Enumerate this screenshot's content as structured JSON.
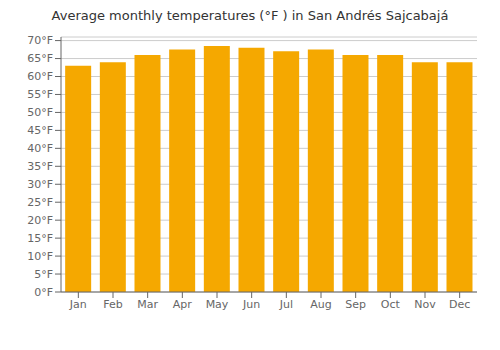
{
  "chart_data": {
    "type": "bar",
    "title": "Average monthly temperatures (°F ) in San Andrés Sajcabajá",
    "categories": [
      "Jan",
      "Feb",
      "Mar",
      "Apr",
      "May",
      "Jun",
      "Jul",
      "Aug",
      "Sep",
      "Oct",
      "Nov",
      "Dec"
    ],
    "values": [
      63.0,
      64.0,
      66.0,
      67.5,
      68.5,
      68.0,
      67.0,
      67.5,
      66.0,
      66.0,
      64.0,
      64.0
    ],
    "color": "#F5A800",
    "ylim": [
      0,
      71
    ],
    "yticks": [
      {
        "value": 0,
        "label": "0°F"
      },
      {
        "value": 5,
        "label": "5°F"
      },
      {
        "value": 10,
        "label": "10°F"
      },
      {
        "value": 15,
        "label": "15°F"
      },
      {
        "value": 20,
        "label": "20°F"
      },
      {
        "value": 25,
        "label": "25°F"
      },
      {
        "value": 30,
        "label": "30°F"
      },
      {
        "value": 35,
        "label": "35°F"
      },
      {
        "value": 40,
        "label": "40°F"
      },
      {
        "value": 45,
        "label": "45°F"
      },
      {
        "value": 50,
        "label": "50°F"
      },
      {
        "value": 55,
        "label": "55°F"
      },
      {
        "value": 60,
        "label": "60°F"
      },
      {
        "value": 65,
        "label": "65°F"
      },
      {
        "value": 70,
        "label": "70°F"
      }
    ],
    "grid": true
  }
}
